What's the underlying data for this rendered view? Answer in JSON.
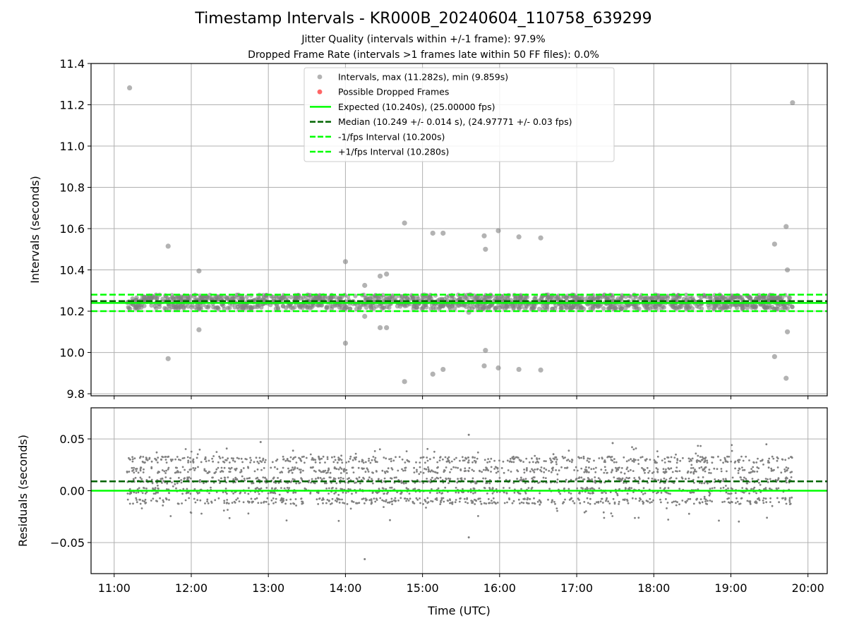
{
  "title": "Timestamp Intervals - KR000B_20240604_110758_639299",
  "subtitle_1": "Jitter Quality (intervals within +/-1 frame): 97.9%",
  "subtitle_2": "Dropped Frame Rate (intervals >1 frames late within 50 FF files): 0.0%",
  "colors": {
    "points": "#808080",
    "dropped": "#ff0000",
    "expected": "#00ff00",
    "median": "#006400",
    "interval_bounds": "#00ff00",
    "grid": "#b0b0b0"
  },
  "chart_data": [
    {
      "type": "scatter",
      "xlabel": "",
      "ylabel": "Intervals (seconds)",
      "ylim": [
        9.79,
        11.4
      ],
      "xlim_hours": [
        10.7,
        20.25
      ],
      "xticks": [
        "11:00",
        "12:00",
        "13:00",
        "14:00",
        "15:00",
        "16:00",
        "17:00",
        "18:00",
        "19:00",
        "20:00"
      ],
      "yticks": [
        "9.8",
        "10.0",
        "10.2",
        "10.4",
        "10.6",
        "10.8",
        "11.0",
        "11.2",
        "11.4"
      ],
      "grid": true,
      "legend_position": "top-center",
      "legend": [
        {
          "label": "Intervals, max (11.282s), min (9.859s)",
          "kind": "point-gray"
        },
        {
          "label": "Possible Dropped Frames",
          "kind": "point-red"
        },
        {
          "label": "Expected (10.240s), (25.00000 fps)",
          "kind": "line-solid-lime"
        },
        {
          "label": "Median (10.249 +/- 0.014 s), (24.97771 +/- 0.03 fps)",
          "kind": "line-dash-darkgreen"
        },
        {
          "label": "-1/fps Interval (10.200s)",
          "kind": "line-dash-lime"
        },
        {
          "label": "+1/fps Interval (10.280s)",
          "kind": "line-dash-lime"
        }
      ],
      "reference_lines": {
        "expected": 10.24,
        "median": 10.249,
        "lower": 10.2,
        "upper": 10.28
      },
      "dense_band": {
        "x_start": "11:10",
        "x_end": "19:48",
        "y_min": 10.21,
        "y_max": 10.28
      },
      "outliers": [
        {
          "x": "11:12",
          "y": 11.282
        },
        {
          "x": "11:42",
          "y": 10.515
        },
        {
          "x": "11:42",
          "y": 9.97
        },
        {
          "x": "12:06",
          "y": 10.395
        },
        {
          "x": "12:06",
          "y": 10.11
        },
        {
          "x": "14:00",
          "y": 10.44
        },
        {
          "x": "14:00",
          "y": 10.045
        },
        {
          "x": "14:15",
          "y": 10.325
        },
        {
          "x": "14:15",
          "y": 10.175
        },
        {
          "x": "14:27",
          "y": 10.37
        },
        {
          "x": "14:27",
          "y": 10.12
        },
        {
          "x": "14:32",
          "y": 10.38
        },
        {
          "x": "14:32",
          "y": 10.12
        },
        {
          "x": "14:46",
          "y": 10.627
        },
        {
          "x": "14:46",
          "y": 9.859
        },
        {
          "x": "15:08",
          "y": 10.578
        },
        {
          "x": "15:08",
          "y": 9.895
        },
        {
          "x": "15:16",
          "y": 10.578
        },
        {
          "x": "15:16",
          "y": 9.918
        },
        {
          "x": "15:36",
          "y": 10.195
        },
        {
          "x": "15:48",
          "y": 10.565
        },
        {
          "x": "15:49",
          "y": 10.5
        },
        {
          "x": "15:49",
          "y": 10.01
        },
        {
          "x": "15:48",
          "y": 9.935
        },
        {
          "x": "15:59",
          "y": 10.59
        },
        {
          "x": "15:59",
          "y": 9.925
        },
        {
          "x": "16:15",
          "y": 10.56
        },
        {
          "x": "16:15",
          "y": 9.918
        },
        {
          "x": "16:32",
          "y": 10.555
        },
        {
          "x": "16:32",
          "y": 9.915
        },
        {
          "x": "19:34",
          "y": 10.525
        },
        {
          "x": "19:34",
          "y": 9.98
        },
        {
          "x": "19:43",
          "y": 10.61
        },
        {
          "x": "19:44",
          "y": 10.4
        },
        {
          "x": "19:44",
          "y": 10.1
        },
        {
          "x": "19:43",
          "y": 9.875
        },
        {
          "x": "19:48",
          "y": 11.21
        }
      ]
    },
    {
      "type": "scatter",
      "xlabel": "Time (UTC)",
      "ylabel": "Residuals (seconds)",
      "ylim": [
        -0.08,
        0.08
      ],
      "yticks": [
        "−0.05",
        "0.00",
        "0.05"
      ],
      "xticks": [
        "11:00",
        "12:00",
        "13:00",
        "14:00",
        "15:00",
        "16:00",
        "17:00",
        "18:00",
        "19:00",
        "20:00"
      ],
      "grid": true,
      "reference_lines": {
        "expected": 0.0,
        "median": 0.009
      },
      "dense_band": {
        "x_start": "11:10",
        "x_end": "19:48",
        "y_min": -0.032,
        "y_max": 0.045
      },
      "outliers": [
        {
          "x": "14:15",
          "y": -0.066
        },
        {
          "x": "15:36",
          "y": -0.045
        },
        {
          "x": "15:36",
          "y": 0.054
        },
        {
          "x": "12:54",
          "y": 0.047
        },
        {
          "x": "17:28",
          "y": 0.046
        }
      ]
    }
  ]
}
